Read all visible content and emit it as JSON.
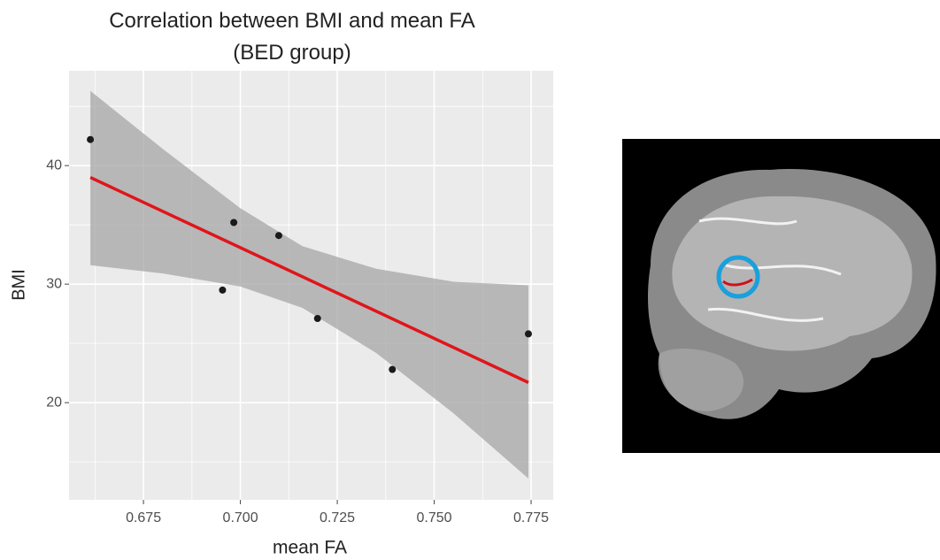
{
  "chart_data": {
    "type": "scatter",
    "title": "Correlation between BMI and mean FA (BED group)",
    "x_label": "mean FA",
    "y_label": "BMI",
    "xlim": [
      0.6558,
      0.7807
    ],
    "ylim": [
      11.8,
      48
    ],
    "xticks": [
      0.675,
      {
        "value": 0.7,
        "label": "0.700"
      },
      0.725,
      {
        "value": 0.75,
        "label": "0.750"
      },
      0.775
    ],
    "yticks": [
      20,
      30,
      40
    ],
    "minor_xticks": [
      0.6625,
      0.6875,
      0.7125,
      0.7375,
      0.7625
    ],
    "minor_yticks": [
      15,
      25,
      35,
      45
    ],
    "grid": true,
    "points": {
      "x": [
        0.6613,
        0.6983,
        0.7099,
        0.6954,
        0.7199,
        0.7392,
        0.7743
      ],
      "y": [
        42.2,
        35.2,
        34.1,
        29.5,
        27.1,
        22.8,
        25.8
      ],
      "color": "#1a1a1a"
    },
    "fit": {
      "x": [
        0.6613,
        0.7743
      ],
      "y": [
        39.0,
        21.7
      ],
      "color": "#e0151b"
    },
    "band": {
      "x": [
        0.6613,
        0.68,
        0.7,
        0.716,
        0.735,
        0.755,
        0.7743
      ],
      "lower": [
        31.6,
        30.9,
        29.8,
        28.0,
        24.2,
        19.1,
        13.6
      ],
      "upper": [
        46.3,
        41.4,
        36.4,
        33.2,
        31.3,
        30.2,
        29.9
      ],
      "color": "#a6a6a6"
    }
  }
}
